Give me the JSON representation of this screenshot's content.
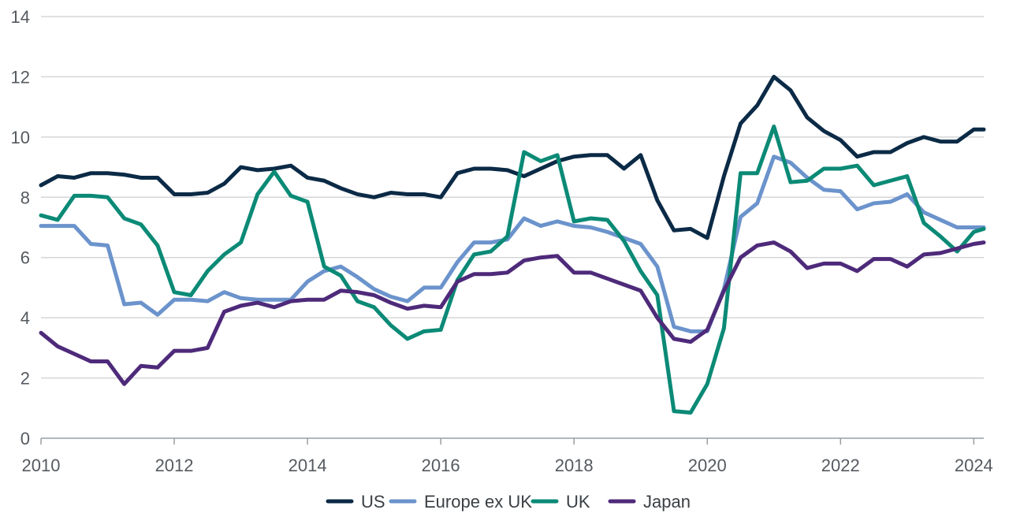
{
  "chart_data": {
    "type": "line",
    "title": "",
    "xlabel": "",
    "ylabel": "",
    "xlim": [
      2010,
      2024.15
    ],
    "ylim": [
      0,
      14
    ],
    "y_ticks": [
      0,
      2,
      4,
      6,
      8,
      10,
      12,
      14
    ],
    "x_ticks": [
      2010,
      2012,
      2014,
      2016,
      2018,
      2020,
      2022,
      2024
    ],
    "y_tick_labels": [
      "0",
      "2",
      "4",
      "6",
      "8",
      "10",
      "12",
      "14"
    ],
    "x_tick_labels": [
      "2010",
      "2012",
      "2014",
      "2016",
      "2018",
      "2020",
      "2022",
      "2024"
    ],
    "grid": "horizontal",
    "legend_position": "bottom",
    "x": [
      2010.0,
      2010.25,
      2010.5,
      2010.75,
      2011.0,
      2011.25,
      2011.5,
      2011.75,
      2012.0,
      2012.25,
      2012.5,
      2012.75,
      2013.0,
      2013.25,
      2013.5,
      2013.75,
      2014.0,
      2014.25,
      2014.5,
      2014.75,
      2015.0,
      2015.25,
      2015.5,
      2015.75,
      2016.0,
      2016.25,
      2016.5,
      2016.75,
      2017.0,
      2017.25,
      2017.5,
      2017.75,
      2018.0,
      2018.25,
      2018.5,
      2018.75,
      2019.0,
      2019.25,
      2019.5,
      2019.75,
      2020.0,
      2020.25,
      2020.5,
      2020.75,
      2021.0,
      2021.25,
      2021.5,
      2021.75,
      2022.0,
      2022.25,
      2022.5,
      2022.75,
      2023.0,
      2023.25,
      2023.5,
      2023.75,
      2024.0,
      2024.15
    ],
    "series": [
      {
        "name": "US",
        "color": "#0b2a46",
        "values": [
          8.4,
          8.7,
          8.65,
          8.8,
          8.8,
          8.75,
          8.65,
          8.65,
          8.1,
          8.1,
          8.15,
          8.45,
          9.0,
          8.9,
          8.95,
          9.05,
          8.65,
          8.55,
          8.3,
          8.1,
          8.0,
          8.15,
          8.1,
          8.1,
          8.0,
          8.8,
          8.95,
          8.95,
          8.9,
          8.7,
          8.95,
          9.2,
          9.35,
          9.4,
          9.4,
          8.95,
          9.4,
          7.9,
          6.9,
          6.95,
          6.65,
          8.7,
          10.45,
          11.05,
          12.0,
          11.55,
          10.65,
          10.2,
          9.9,
          9.35,
          9.5,
          9.5,
          9.8,
          10.0,
          9.85,
          9.85,
          10.25,
          10.25
        ]
      },
      {
        "name": "Europe ex UK",
        "color": "#6b93cc",
        "values": [
          7.05,
          7.05,
          7.05,
          6.45,
          6.4,
          4.45,
          4.5,
          4.1,
          4.6,
          4.6,
          4.55,
          4.85,
          4.65,
          4.6,
          4.6,
          4.6,
          5.2,
          5.55,
          5.7,
          5.35,
          4.95,
          4.7,
          4.55,
          5.0,
          5.0,
          5.85,
          6.5,
          6.5,
          6.6,
          7.3,
          7.05,
          7.2,
          7.05,
          7.0,
          6.85,
          6.65,
          6.45,
          5.7,
          3.7,
          3.55,
          3.55,
          4.95,
          7.35,
          7.8,
          9.35,
          9.15,
          8.65,
          8.25,
          8.2,
          7.6,
          7.8,
          7.85,
          8.1,
          7.5,
          7.25,
          7.0,
          7.0,
          7.0
        ]
      },
      {
        "name": "UK",
        "color": "#0b8a76",
        "values": [
          7.4,
          7.25,
          8.05,
          8.05,
          8.0,
          7.3,
          7.1,
          6.4,
          4.85,
          4.75,
          5.55,
          6.1,
          6.5,
          8.1,
          8.85,
          8.05,
          7.85,
          5.7,
          5.4,
          4.55,
          4.35,
          3.75,
          3.3,
          3.55,
          3.6,
          5.25,
          6.1,
          6.2,
          6.7,
          9.5,
          9.2,
          9.4,
          7.2,
          7.3,
          7.25,
          6.55,
          5.55,
          4.75,
          0.9,
          0.85,
          1.8,
          3.65,
          8.8,
          8.8,
          10.35,
          8.5,
          8.55,
          8.95,
          8.95,
          9.05,
          8.4,
          8.55,
          8.7,
          7.15,
          6.7,
          6.2,
          6.85,
          6.95
        ]
      },
      {
        "name": "Japan",
        "color": "#4e2a7a",
        "values": [
          3.5,
          3.05,
          2.8,
          2.55,
          2.55,
          1.8,
          2.4,
          2.35,
          2.9,
          2.9,
          3.0,
          4.2,
          4.4,
          4.5,
          4.35,
          4.55,
          4.6,
          4.6,
          4.9,
          4.85,
          4.75,
          4.5,
          4.3,
          4.4,
          4.35,
          5.2,
          5.45,
          5.45,
          5.5,
          5.9,
          6.0,
          6.05,
          5.5,
          5.5,
          5.3,
          5.1,
          4.9,
          4.0,
          3.3,
          3.2,
          3.6,
          4.9,
          6.0,
          6.4,
          6.5,
          6.2,
          5.65,
          5.8,
          5.8,
          5.55,
          5.95,
          5.95,
          5.7,
          6.1,
          6.15,
          6.3,
          6.45,
          6.5
        ]
      }
    ]
  }
}
